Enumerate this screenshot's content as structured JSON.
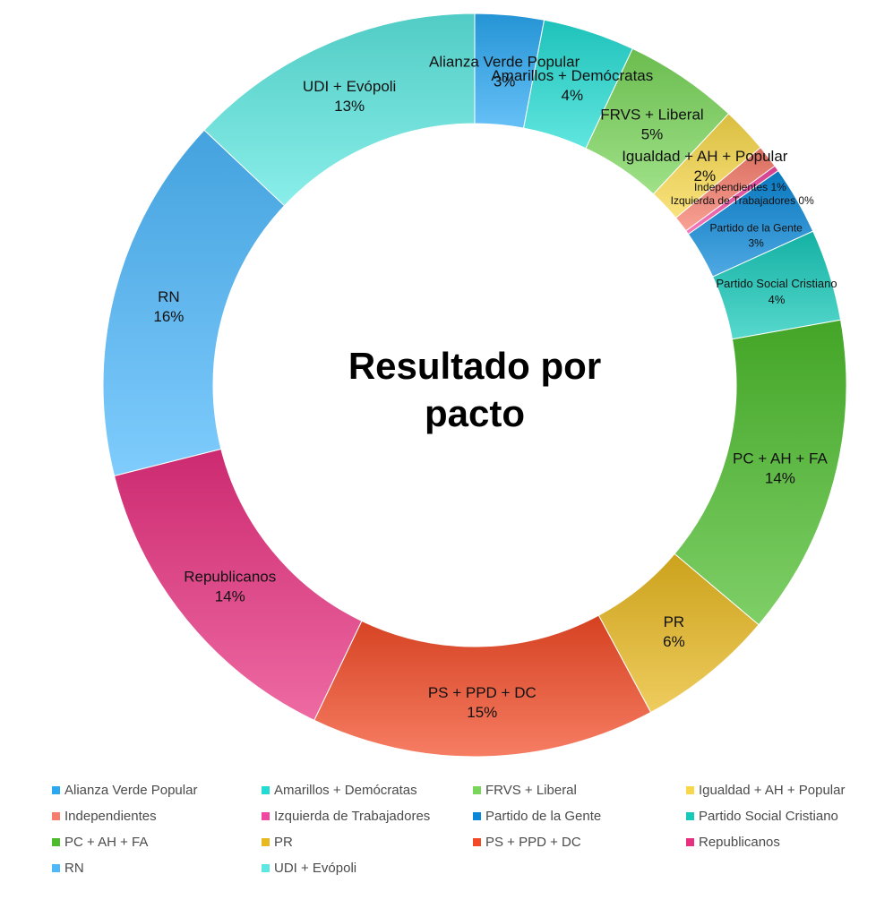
{
  "chart_data": {
    "type": "pie",
    "variant": "donut",
    "title": "Resultado por pacto",
    "title_lines": [
      "Resultado por",
      "pacto"
    ],
    "legend_position": "bottom",
    "slices": [
      {
        "name": "Alianza Verde Popular",
        "value": 3,
        "label": "3%",
        "color": "#2aa8f2"
      },
      {
        "name": "Amarillos + Demócratas",
        "value": 4,
        "label": "4%",
        "color": "#22dcd3"
      },
      {
        "name": "FRVS + Liberal",
        "value": 5,
        "label": "5%",
        "color": "#7ad65a"
      },
      {
        "name": "Igualdad + AH + Popular",
        "value": 2,
        "label": "2%",
        "color": "#f8d84a"
      },
      {
        "name": "Independientes",
        "value": 1,
        "label": "1%",
        "color": "#f77d6c"
      },
      {
        "name": "Izquierda de Trabajadores",
        "value": 0,
        "label": "0%",
        "color": "#f047a0"
      },
      {
        "name": "Partido de la Gente",
        "value": 3,
        "label": "3%",
        "color": "#0a87d8"
      },
      {
        "name": "Partido Social Cristiano",
        "value": 4,
        "label": "4%",
        "color": "#16c9b9"
      },
      {
        "name": "PC + AH + FA",
        "value": 14,
        "label": "14%",
        "color": "#4cbc2c"
      },
      {
        "name": "PR",
        "value": 6,
        "label": "6%",
        "color": "#e8b820"
      },
      {
        "name": "PS + PPD + DC",
        "value": 15,
        "label": "15%",
        "color": "#f24a26"
      },
      {
        "name": "Republicanos",
        "value": 14,
        "label": "14%",
        "color": "#e8307f"
      },
      {
        "name": "RN",
        "value": 16,
        "label": "16%",
        "color": "#4db8fc"
      },
      {
        "name": "UDI + Evópoli",
        "value": 13,
        "label": "13%",
        "color": "#5ce8e0"
      }
    ]
  }
}
